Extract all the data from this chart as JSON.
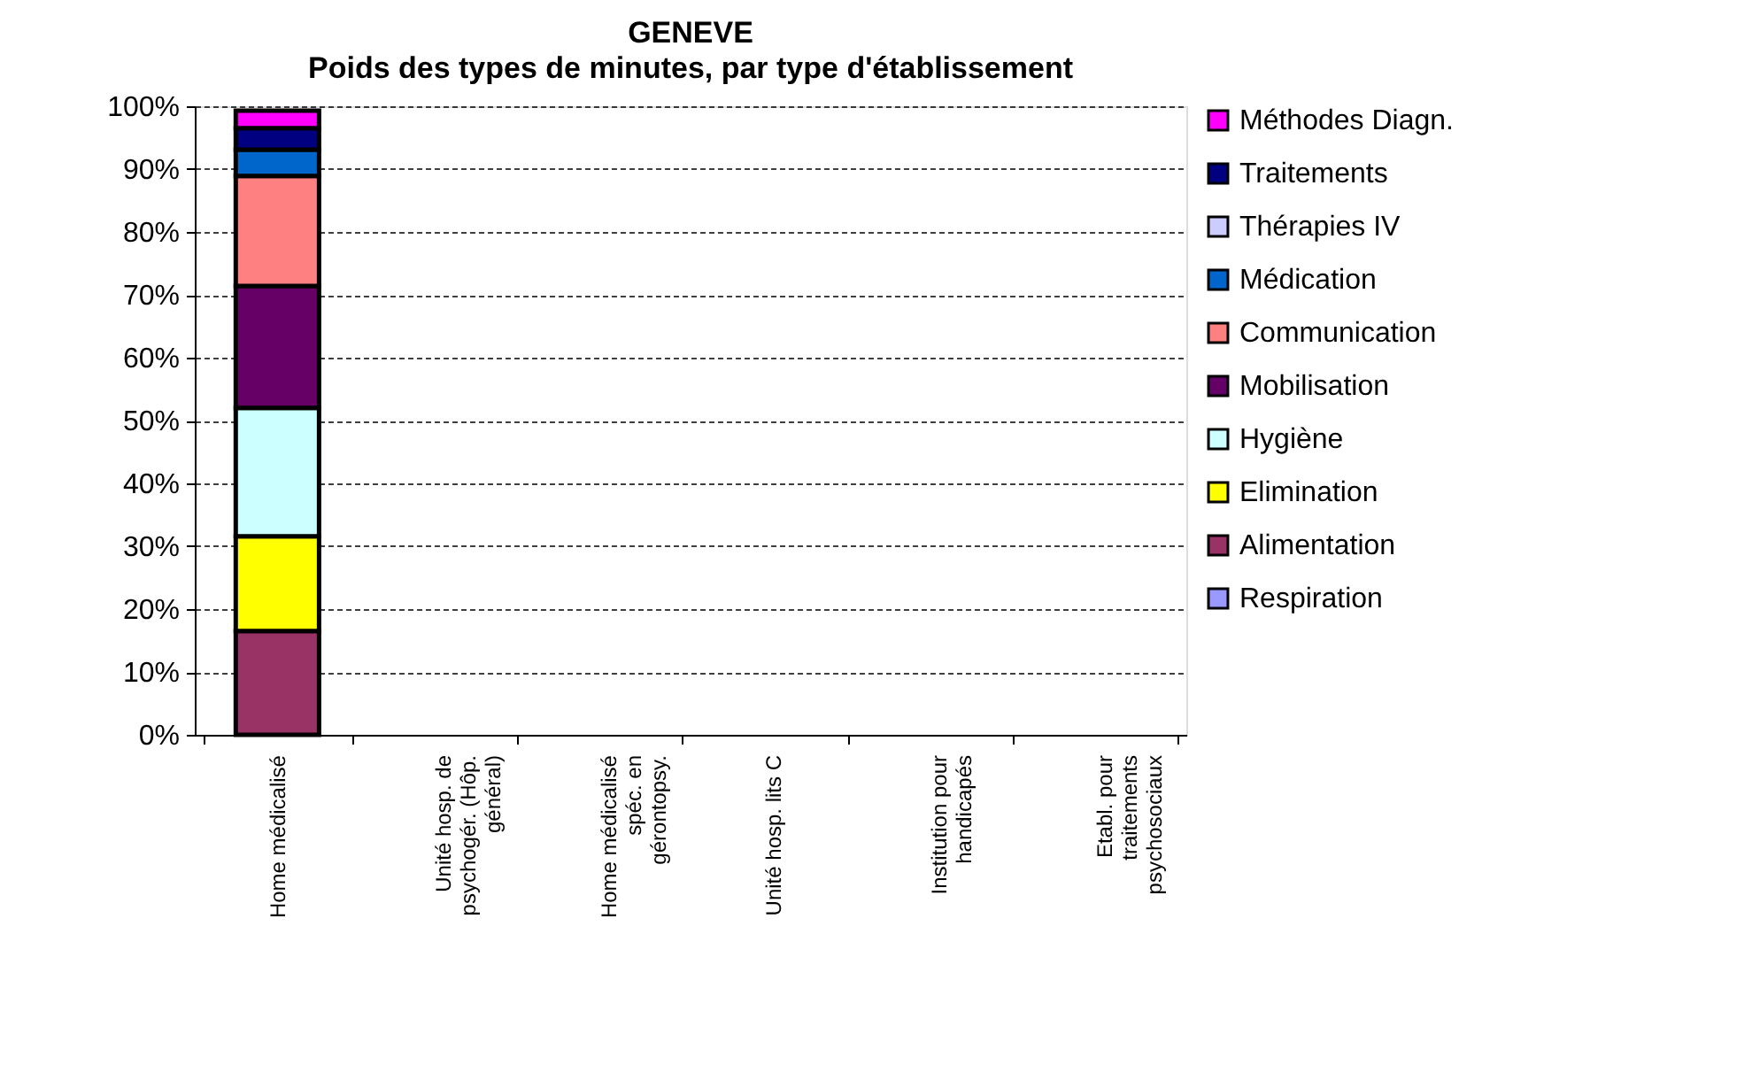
{
  "chart_data": {
    "type": "bar",
    "stacked": true,
    "title": "GENEVE",
    "subtitle": "Poids des types de minutes, par type d'établissement",
    "categories": [
      "Home médicalisé",
      "Unité hosp. de psychogér. (Hôp. général)",
      "Home médicalisé spéc. en gérontopsy.",
      "Unité hosp. lits C",
      "Institution pour handicapés",
      "Etabl. pour traitements psychosociaux"
    ],
    "series": [
      {
        "name": "Respiration",
        "color": "#9999ff",
        "values": [
          null,
          null,
          null,
          null,
          null,
          null
        ]
      },
      {
        "name": "Alimentation",
        "color": "#993366",
        "values": [
          16.5,
          null,
          null,
          null,
          null,
          null
        ]
      },
      {
        "name": "Elimination",
        "color": "#ffff00",
        "values": [
          15.1,
          null,
          null,
          null,
          null,
          null
        ]
      },
      {
        "name": "Hygiène",
        "color": "#ccffff",
        "values": [
          20.4,
          null,
          null,
          null,
          null,
          null
        ]
      },
      {
        "name": "Mobilisation",
        "color": "#660066",
        "values": [
          19.4,
          null,
          null,
          null,
          null,
          null
        ]
      },
      {
        "name": "Communication",
        "color": "#ff8080",
        "values": [
          17.5,
          null,
          null,
          null,
          null,
          null
        ]
      },
      {
        "name": "Médication",
        "color": "#0066cc",
        "values": [
          4.2,
          null,
          null,
          null,
          null,
          null
        ]
      },
      {
        "name": "Thérapies IV",
        "color": "#ccccff",
        "values": [
          null,
          null,
          null,
          null,
          null,
          null
        ]
      },
      {
        "name": "Traitements",
        "color": "#000080",
        "values": [
          3.4,
          null,
          null,
          null,
          null,
          null
        ]
      },
      {
        "name": "Méthodes Diagn.",
        "color": "#ff00ff",
        "values": [
          2.8,
          null,
          null,
          null,
          null,
          null
        ]
      }
    ],
    "ylim": [
      0,
      100
    ],
    "yticks": [
      {
        "value": 0,
        "label": "0%"
      },
      {
        "value": 10,
        "label": "10%"
      },
      {
        "value": 20,
        "label": "20%"
      },
      {
        "value": 30,
        "label": "30%"
      },
      {
        "value": 40,
        "label": "40%"
      },
      {
        "value": 50,
        "label": "50%"
      },
      {
        "value": 60,
        "label": "60%"
      },
      {
        "value": 70,
        "label": "70%"
      },
      {
        "value": 80,
        "label": "80%"
      },
      {
        "value": 90,
        "label": "90%"
      },
      {
        "value": 100,
        "label": "100%"
      }
    ],
    "grid": "y",
    "legend": "right"
  }
}
